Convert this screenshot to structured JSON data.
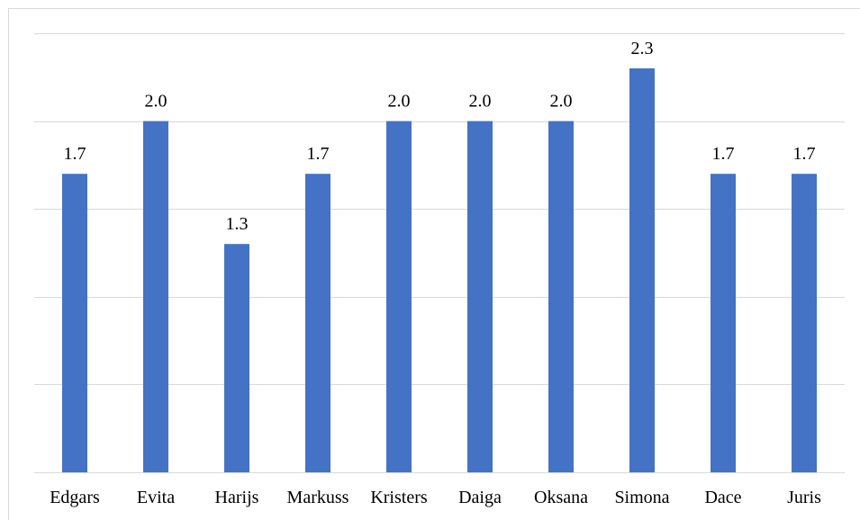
{
  "chart_data": {
    "type": "bar",
    "title": "",
    "xlabel": "",
    "ylabel": "",
    "categories": [
      "Edgars",
      "Evita",
      "Harijs",
      "Markuss",
      "Kristers",
      "Daiga",
      "Oksana",
      "Simona",
      "Dace",
      "Juris"
    ],
    "values": [
      1.7,
      2.0,
      1.3,
      1.7,
      2.0,
      2.0,
      2.0,
      2.3,
      1.7,
      1.7
    ],
    "data_labels": [
      "1.7",
      "2.0",
      "1.3",
      "1.7",
      "2.0",
      "2.0",
      "2.0",
      "2.3",
      "1.7",
      "1.7"
    ],
    "ylim": [
      0,
      2.5
    ],
    "gridlines": [
      0,
      0.5,
      1.0,
      1.5,
      2.0,
      2.5
    ],
    "grid": true,
    "legend": "none",
    "y_tick_labels_visible": false,
    "colors": {
      "bar": "#4472c4",
      "grid": "#d9d9d9",
      "text": "#000000"
    }
  }
}
